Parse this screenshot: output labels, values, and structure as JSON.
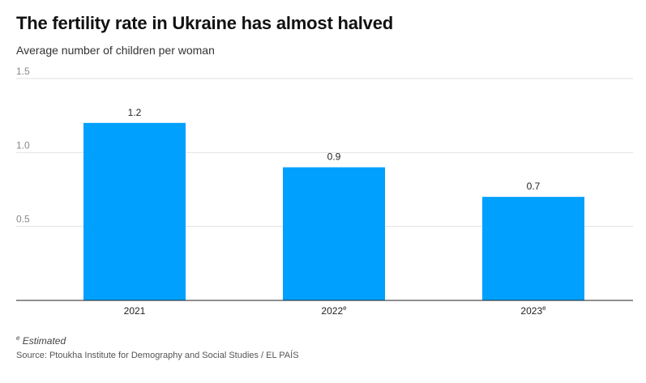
{
  "title": "The fertility rate in Ukraine has almost halved",
  "subtitle": "Average number of children per woman",
  "footnote": {
    "marker": "e",
    "text": "Estimated"
  },
  "source": "Source: Ptoukha Institute for Demography and Social Studies / EL PAÍS",
  "colors": {
    "bar": "#00a0ff",
    "grid": "#e2e2e2",
    "axis": "#222222"
  },
  "chart_data": {
    "type": "bar",
    "categories": [
      "2021",
      "2022",
      "2023"
    ],
    "category_superscripts": [
      "",
      "e",
      "e"
    ],
    "values": [
      1.2,
      0.9,
      0.7
    ],
    "value_labels": [
      "1.2",
      "0.9",
      "0.7"
    ],
    "title": "The fertility rate in Ukraine has almost halved",
    "subtitle": "Average number of children per woman",
    "ylim": [
      0,
      1.5
    ],
    "yticks": [
      0.5,
      1.0,
      1.5
    ],
    "ytick_labels": [
      "0.5",
      "1.0",
      "1.5"
    ],
    "grid": true,
    "legend": "none"
  }
}
